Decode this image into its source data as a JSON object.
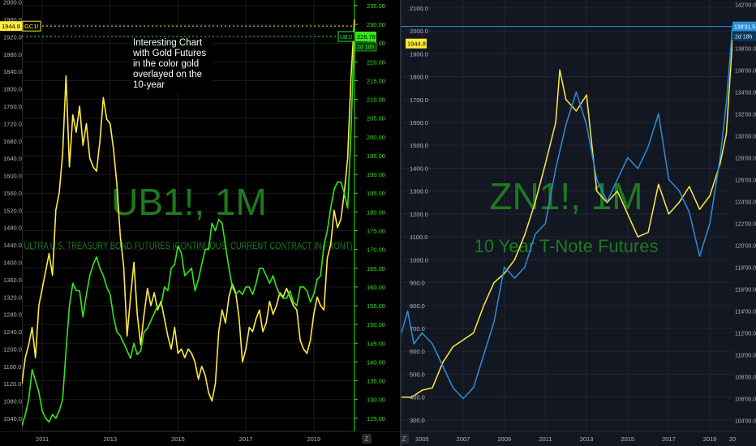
{
  "colors": {
    "gold": "#ffeb3b",
    "green": "#33e619",
    "blue": "#2b8fd8",
    "watermark": "#1e7a1e",
    "grid_left": "#1a1a1a",
    "grid_right": "#1f2433",
    "axis_text_left_right": "#33e619",
    "axis_text": "#b2b5be"
  },
  "left_panel": {
    "watermark_symbol": "UB1!, 1M",
    "watermark_desc": "ULTRA U.S. TREASURY BOND FUTURES (CONTINUOUS: CURRENT CONTRACT IN FRONT)",
    "annotation": "Interesting Chart with Gold Futures in the color gold overlayed on the 10-year",
    "gold_last_label": "1944.8",
    "gold_symbol_label": "GC1!",
    "ub_symbol_label": "UB1!",
    "ub_last_label": "226.78",
    "ub_countdown": "2d 18h",
    "bottom_icon": "Z",
    "chart_data": {
      "type": "line",
      "x_axis_ticks": [
        "2011",
        "2013",
        "2015",
        "2017",
        "2019"
      ],
      "left_axis_ticks": [
        "1040.0",
        "1080.0",
        "1120.0",
        "1160.0",
        "1200.0",
        "1240.0",
        "1280.0",
        "1320.0",
        "1360.0",
        "1400.0",
        "1440.0",
        "1480.0",
        "1520.0",
        "1560.0",
        "1600.0",
        "1640.0",
        "1680.0",
        "1720.0",
        "1760.0",
        "1800.0",
        "1840.0",
        "1880.0",
        "1920.0",
        "1960.0",
        "2000.0"
      ],
      "right_axis_ticks": [
        "125.00",
        "130.00",
        "135.00",
        "140.00",
        "145.00",
        "150.00",
        "155.00",
        "160.00",
        "165.00",
        "170.00",
        "175.00",
        "180.00",
        "185.00",
        "190.00",
        "195.00",
        "200.00",
        "205.00",
        "210.00",
        "215.00",
        "220.00",
        "225.00",
        "230.00",
        "235.00"
      ],
      "left_axis_range": [
        1010,
        2005
      ],
      "right_axis_range": [
        121.5,
        236.5
      ],
      "x_range": [
        2010.4,
        2020.2
      ],
      "series": [
        {
          "name": "GC1!",
          "axis": "left",
          "color": "gold",
          "x": [
            2010.4,
            2010.5,
            2010.6,
            2010.7,
            2010.8,
            2010.9,
            2011.0,
            2011.1,
            2011.2,
            2011.3,
            2011.4,
            2011.5,
            2011.6,
            2011.7,
            2011.8,
            2011.9,
            2012.0,
            2012.1,
            2012.2,
            2012.3,
            2012.4,
            2012.5,
            2012.6,
            2012.7,
            2012.8,
            2012.9,
            2013.0,
            2013.1,
            2013.2,
            2013.3,
            2013.4,
            2013.5,
            2013.6,
            2013.7,
            2013.8,
            2013.9,
            2014.0,
            2014.1,
            2014.2,
            2014.3,
            2014.4,
            2014.5,
            2014.6,
            2014.7,
            2014.8,
            2014.9,
            2015.0,
            2015.1,
            2015.2,
            2015.3,
            2015.4,
            2015.5,
            2015.6,
            2015.7,
            2015.8,
            2015.9,
            2016.0,
            2016.1,
            2016.2,
            2016.3,
            2016.4,
            2016.5,
            2016.6,
            2016.7,
            2016.8,
            2016.9,
            2017.0,
            2017.1,
            2017.2,
            2017.3,
            2017.4,
            2017.5,
            2017.6,
            2017.7,
            2017.8,
            2017.9,
            2018.0,
            2018.1,
            2018.2,
            2018.3,
            2018.4,
            2018.5,
            2018.6,
            2018.7,
            2018.8,
            2018.9,
            2019.0,
            2019.1,
            2019.2,
            2019.3,
            2019.4,
            2019.5,
            2019.6,
            2019.7,
            2019.8,
            2019.9,
            2020.0,
            2020.1,
            2020.2
          ],
          "values": [
            1120,
            1180,
            1210,
            1250,
            1180,
            1300,
            1340,
            1380,
            1420,
            1370,
            1520,
            1560,
            1650,
            1830,
            1620,
            1740,
            1700,
            1760,
            1670,
            1720,
            1640,
            1620,
            1610,
            1680,
            1780,
            1730,
            1720,
            1660,
            1580,
            1460,
            1390,
            1230,
            1320,
            1400,
            1280,
            1210,
            1280,
            1340,
            1300,
            1330,
            1290,
            1310,
            1270,
            1230,
            1200,
            1250,
            1190,
            1200,
            1180,
            1200,
            1190,
            1170,
            1130,
            1160,
            1140,
            1100,
            1080,
            1120,
            1240,
            1290,
            1260,
            1320,
            1350,
            1330,
            1270,
            1170,
            1200,
            1250,
            1240,
            1270,
            1290,
            1240,
            1260,
            1310,
            1280,
            1300,
            1330,
            1320,
            1340,
            1320,
            1300,
            1290,
            1220,
            1200,
            1190,
            1220,
            1280,
            1320,
            1300,
            1290,
            1410,
            1440,
            1520,
            1480,
            1500,
            1560,
            1640,
            1830,
            1960
          ]
        },
        {
          "name": "UB1!",
          "axis": "right",
          "color": "green",
          "x": [
            2010.4,
            2010.5,
            2010.6,
            2010.7,
            2010.8,
            2010.9,
            2011.0,
            2011.1,
            2011.2,
            2011.3,
            2011.4,
            2011.5,
            2011.6,
            2011.7,
            2011.8,
            2011.9,
            2012.0,
            2012.1,
            2012.2,
            2012.3,
            2012.4,
            2012.5,
            2012.6,
            2012.7,
            2012.8,
            2012.9,
            2013.0,
            2013.1,
            2013.2,
            2013.3,
            2013.4,
            2013.5,
            2013.6,
            2013.7,
            2013.8,
            2013.9,
            2014.0,
            2014.1,
            2014.2,
            2014.3,
            2014.4,
            2014.5,
            2014.6,
            2014.7,
            2014.8,
            2014.9,
            2015.0,
            2015.1,
            2015.2,
            2015.3,
            2015.4,
            2015.5,
            2015.6,
            2015.7,
            2015.8,
            2015.9,
            2016.0,
            2016.1,
            2016.2,
            2016.3,
            2016.4,
            2016.5,
            2016.6,
            2016.7,
            2016.8,
            2016.9,
            2017.0,
            2017.1,
            2017.2,
            2017.3,
            2017.4,
            2017.5,
            2017.6,
            2017.7,
            2017.8,
            2017.9,
            2018.0,
            2018.1,
            2018.2,
            2018.3,
            2018.4,
            2018.5,
            2018.6,
            2018.7,
            2018.8,
            2018.9,
            2019.0,
            2019.1,
            2019.2,
            2019.3,
            2019.4,
            2019.5,
            2019.6,
            2019.7,
            2019.8,
            2019.9,
            2020.0,
            2020.1,
            2020.2
          ],
          "values": [
            123,
            126,
            130,
            138,
            135,
            132,
            127,
            125,
            124,
            126,
            125,
            127,
            130,
            143,
            155,
            161,
            159,
            159,
            152,
            158,
            163,
            166,
            168,
            165,
            163,
            160,
            158,
            152,
            148,
            147,
            145,
            143,
            141,
            145,
            142,
            143,
            148,
            149,
            151,
            153,
            155,
            155,
            160,
            159,
            165,
            166,
            171,
            169,
            163,
            164,
            165,
            159,
            162,
            166,
            170,
            170,
            177,
            175,
            178,
            177,
            171,
            165,
            160,
            158,
            159,
            158,
            160,
            160,
            158,
            161,
            165,
            165,
            163,
            161,
            163,
            160,
            158,
            157,
            157,
            159,
            156,
            155,
            160,
            160,
            159,
            156,
            158,
            162,
            163,
            171,
            175,
            181,
            186,
            188,
            188,
            185,
            181,
            202,
            229
          ]
        }
      ]
    }
  },
  "right_panel": {
    "watermark_symbol": "ZN1!, 1M",
    "watermark_desc": "10 Year T-Note Futures",
    "gold_last_label": "1944.8",
    "zn_last_label": "139'31.5",
    "zn_countdown": "2d 18h",
    "bottom_icon": "Z",
    "chart_data": {
      "type": "line",
      "x_axis_ticks": [
        "2005",
        "2007",
        "2009",
        "2011",
        "2013",
        "2015",
        "2017",
        "2019",
        "20"
      ],
      "left_axis_ticks": [
        "300.0",
        "400.0",
        "500.0",
        "600.0",
        "700.0",
        "800.0",
        "900.0",
        "1000.0",
        "1100.0",
        "1200.0",
        "1300.0",
        "1400.0",
        "1500.0",
        "1600.0",
        "1700.0",
        "1800.0",
        "1900.0",
        "2000.0",
        "2100.0"
      ],
      "right_axis_ticks": [
        "104'00.0",
        "106'00.0",
        "108'00.0",
        "110'00.0",
        "112'00.0",
        "114'00.0",
        "116'00.0",
        "118'00.0",
        "120'00.0",
        "122'00.0",
        "124'00.0",
        "126'00.0",
        "128'00.0",
        "130'00.0",
        "132'00.0",
        "134'00.0",
        "136'00.0",
        "138'00.0",
        "140'00.0",
        "142'00.0"
      ],
      "left_axis_range": [
        250,
        2135
      ],
      "right_axis_range": [
        103,
        142.4
      ],
      "x_range": [
        2004.0,
        2020.1
      ],
      "series": [
        {
          "name": "GC1!",
          "axis": "left",
          "color": "gold",
          "x": [
            2004.0,
            2004.5,
            2005.0,
            2005.5,
            2006.0,
            2006.5,
            2007.0,
            2007.5,
            2008.0,
            2008.5,
            2009.0,
            2009.5,
            2010.0,
            2010.5,
            2011.0,
            2011.5,
            2011.7,
            2012.0,
            2012.5,
            2013.0,
            2013.5,
            2014.0,
            2014.5,
            2015.0,
            2015.5,
            2016.0,
            2016.5,
            2017.0,
            2017.5,
            2018.0,
            2018.5,
            2019.0,
            2019.5,
            2019.8,
            2020.1
          ],
          "values": [
            400,
            400,
            430,
            440,
            550,
            620,
            650,
            680,
            800,
            900,
            940,
            1000,
            1110,
            1250,
            1420,
            1600,
            1830,
            1700,
            1650,
            1720,
            1300,
            1250,
            1300,
            1200,
            1100,
            1120,
            1330,
            1200,
            1250,
            1320,
            1220,
            1280,
            1420,
            1550,
            1960
          ]
        },
        {
          "name": "ZN1!",
          "axis": "right",
          "color": "blue",
          "x": [
            2004.0,
            2004.3,
            2004.6,
            2005.0,
            2005.5,
            2006.0,
            2006.5,
            2007.0,
            2007.5,
            2008.0,
            2008.5,
            2009.0,
            2009.5,
            2010.0,
            2010.5,
            2011.0,
            2011.5,
            2012.0,
            2012.5,
            2013.0,
            2013.5,
            2014.0,
            2014.5,
            2015.0,
            2015.5,
            2016.0,
            2016.5,
            2017.0,
            2017.5,
            2018.0,
            2018.5,
            2019.0,
            2019.5,
            2019.8,
            2020.1
          ],
          "values": [
            112,
            114,
            111,
            112,
            111,
            109,
            107,
            106,
            107,
            110,
            113,
            118,
            117,
            118,
            121,
            122,
            127,
            131,
            134,
            131,
            126,
            124,
            126,
            128,
            127,
            129,
            132,
            126,
            125,
            123,
            119,
            122,
            128,
            133,
            140
          ]
        }
      ]
    }
  }
}
